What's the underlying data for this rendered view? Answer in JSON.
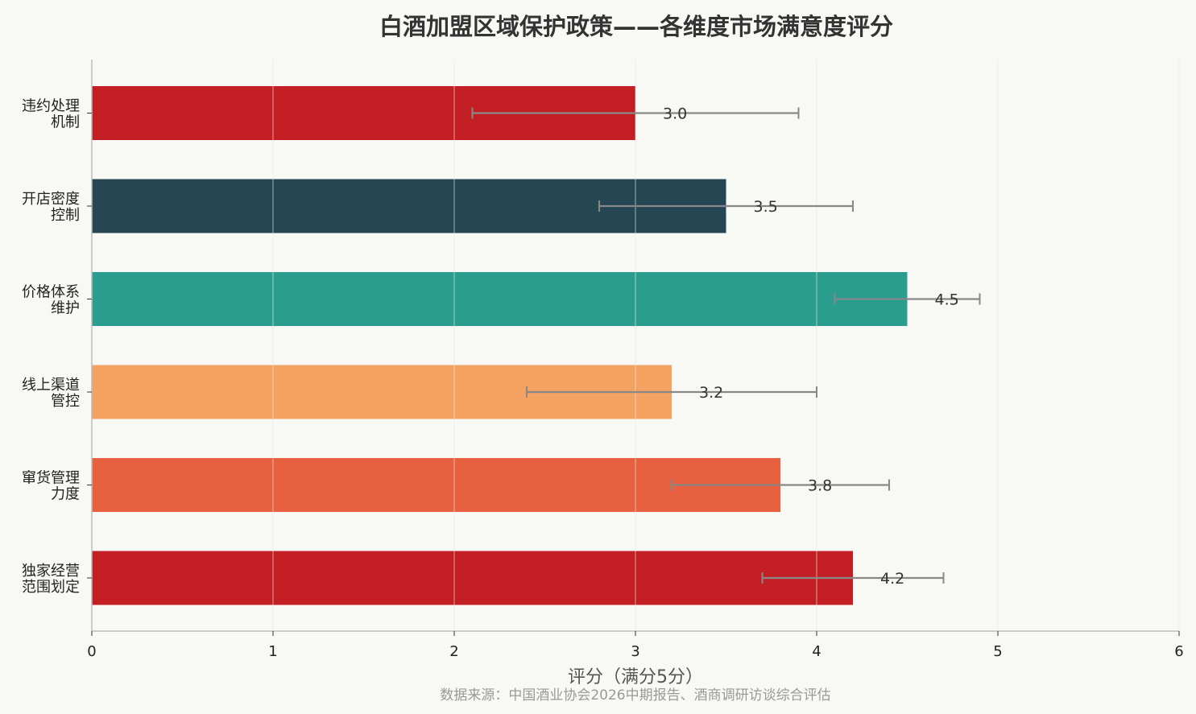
{
  "colors": {
    "background": "#f8f8f4",
    "grid": "#e6e6e1",
    "axis": "#bdbdbd",
    "errorbar": "#888888"
  },
  "chart_data": {
    "type": "bar",
    "orientation": "horizontal",
    "title": "白酒加盟区域保护政策——各维度市场满意度评分",
    "xlabel": "评分（满分5分）",
    "ylabel": "",
    "xlim": [
      0,
      6
    ],
    "xticks": [
      0,
      1,
      2,
      3,
      4,
      5,
      6
    ],
    "grid": true,
    "source_note": "数据来源：中国酒业协会2026中期报告、酒商调研访谈综合评估",
    "categories": [
      [
        "违约处理",
        "机制"
      ],
      [
        "开店密度",
        "控制"
      ],
      [
        "价格体系",
        "维护"
      ],
      [
        "线上渠道",
        "管控"
      ],
      [
        "窜货管理",
        "力度"
      ],
      [
        "独家经营",
        "范围划定"
      ]
    ],
    "values": [
      3.0,
      3.5,
      4.5,
      3.2,
      3.8,
      4.2
    ],
    "value_labels": [
      "3.0",
      "3.5",
      "4.5",
      "3.2",
      "3.8",
      "4.2"
    ],
    "error_low": [
      2.1,
      2.8,
      4.1,
      2.4,
      3.2,
      3.7
    ],
    "error_high": [
      3.9,
      4.2,
      4.9,
      4.0,
      4.4,
      4.7
    ],
    "bar_colors": [
      "#c41e25",
      "#264653",
      "#2a9d8f",
      "#f4a261",
      "#e76040",
      "#c41e25"
    ]
  }
}
